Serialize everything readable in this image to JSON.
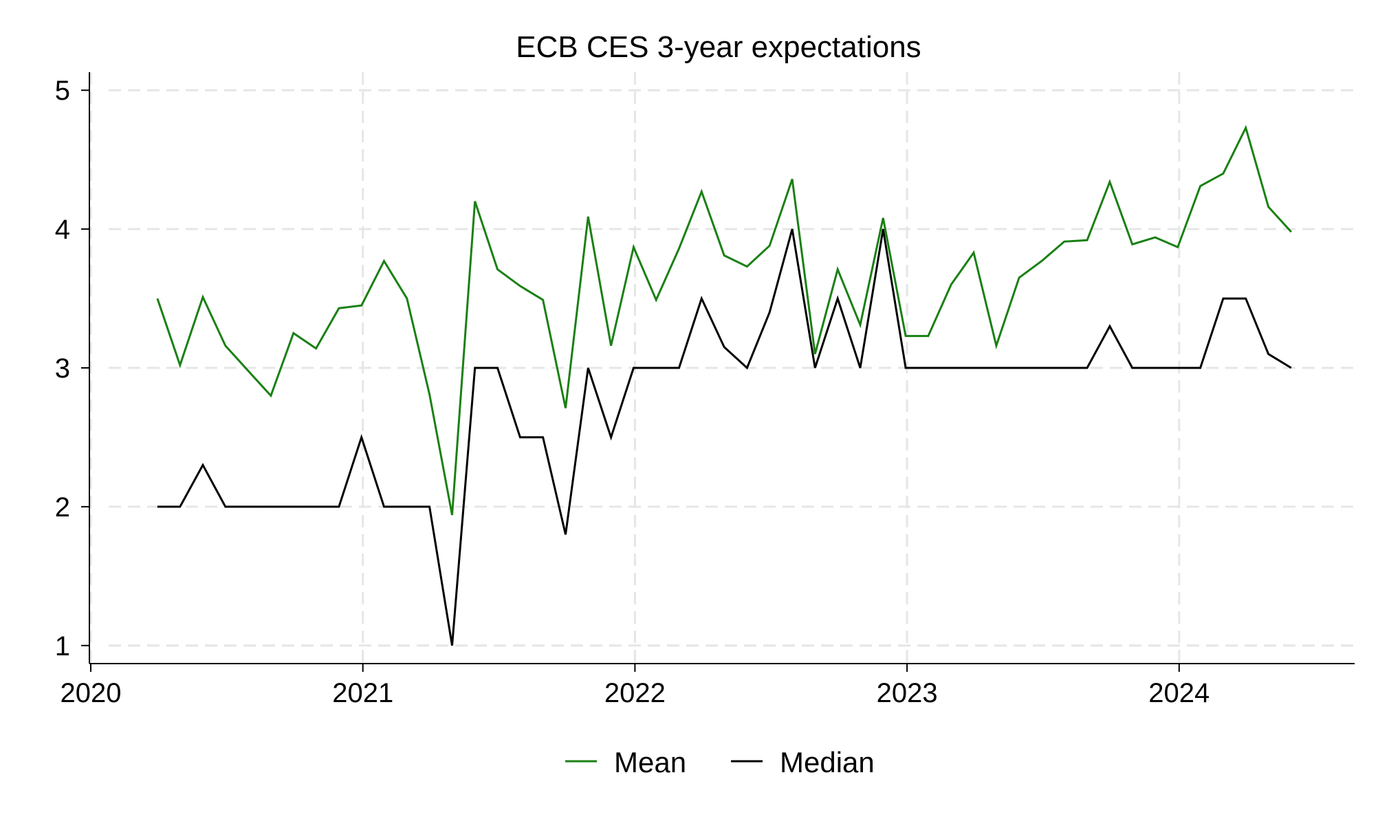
{
  "chart_data": {
    "type": "line",
    "title": "ECB CES 3-year expectations",
    "xlabel": "",
    "ylabel": "",
    "xlim": [
      2020.0,
      2024.65
    ],
    "ylim": [
      0.87,
      5.13
    ],
    "grid": true,
    "legend_position": "bottom",
    "x_ticks": [
      2020,
      2021,
      2022,
      2023,
      2024
    ],
    "x_tick_labels": [
      "2020",
      "2021",
      "2022",
      "2023",
      "2024"
    ],
    "y_ticks": [
      1,
      2,
      3,
      4,
      5
    ],
    "y_tick_labels": [
      "1",
      "2",
      "3",
      "4",
      "5"
    ],
    "x": [
      2020.25,
      2020.333,
      2020.417,
      2020.5,
      2020.583,
      2020.667,
      2020.75,
      2020.833,
      2020.917,
      2021.0,
      2021.083,
      2021.167,
      2021.25,
      2021.333,
      2021.417,
      2021.5,
      2021.583,
      2021.667,
      2021.75,
      2021.833,
      2021.917,
      2022.0,
      2022.083,
      2022.167,
      2022.25,
      2022.333,
      2022.417,
      2022.5,
      2022.583,
      2022.667,
      2022.75,
      2022.833,
      2022.917,
      2023.0,
      2023.083,
      2023.167,
      2023.25,
      2023.333,
      2023.417,
      2023.5,
      2023.583,
      2023.667,
      2023.75,
      2023.833,
      2023.917,
      2024.0,
      2024.083,
      2024.167,
      2024.25,
      2024.333,
      2024.417
    ],
    "series": [
      {
        "name": "Mean",
        "color": "#1a8014",
        "values": [
          3.5,
          3.02,
          3.51,
          3.16,
          2.98,
          2.8,
          3.25,
          3.14,
          3.43,
          3.45,
          3.77,
          3.5,
          2.81,
          1.94,
          4.2,
          3.71,
          3.59,
          3.49,
          2.71,
          4.09,
          3.16,
          3.87,
          3.49,
          3.86,
          4.27,
          3.81,
          3.73,
          3.88,
          4.36,
          3.1,
          3.71,
          3.31,
          4.08,
          3.23,
          3.23,
          3.6,
          3.83,
          3.16,
          3.65,
          3.77,
          3.91,
          3.92,
          4.34,
          3.89,
          3.94,
          3.87,
          4.31,
          4.4,
          4.73,
          4.16,
          3.98
        ]
      },
      {
        "name": "Median",
        "color": "#000000",
        "values": [
          2.0,
          2.0,
          2.3,
          2.0,
          2.0,
          2.0,
          2.0,
          2.0,
          2.0,
          2.5,
          2.0,
          2.0,
          2.0,
          1.0,
          3.0,
          3.0,
          2.5,
          2.5,
          1.8,
          3.0,
          2.5,
          3.0,
          3.0,
          3.0,
          3.5,
          3.15,
          3.0,
          3.4,
          4.0,
          3.0,
          3.5,
          3.0,
          4.0,
          3.0,
          3.0,
          3.0,
          3.0,
          3.0,
          3.0,
          3.0,
          3.0,
          3.0,
          3.3,
          3.0,
          3.0,
          3.0,
          3.0,
          3.5,
          3.5,
          3.1,
          3.0
        ]
      }
    ]
  }
}
